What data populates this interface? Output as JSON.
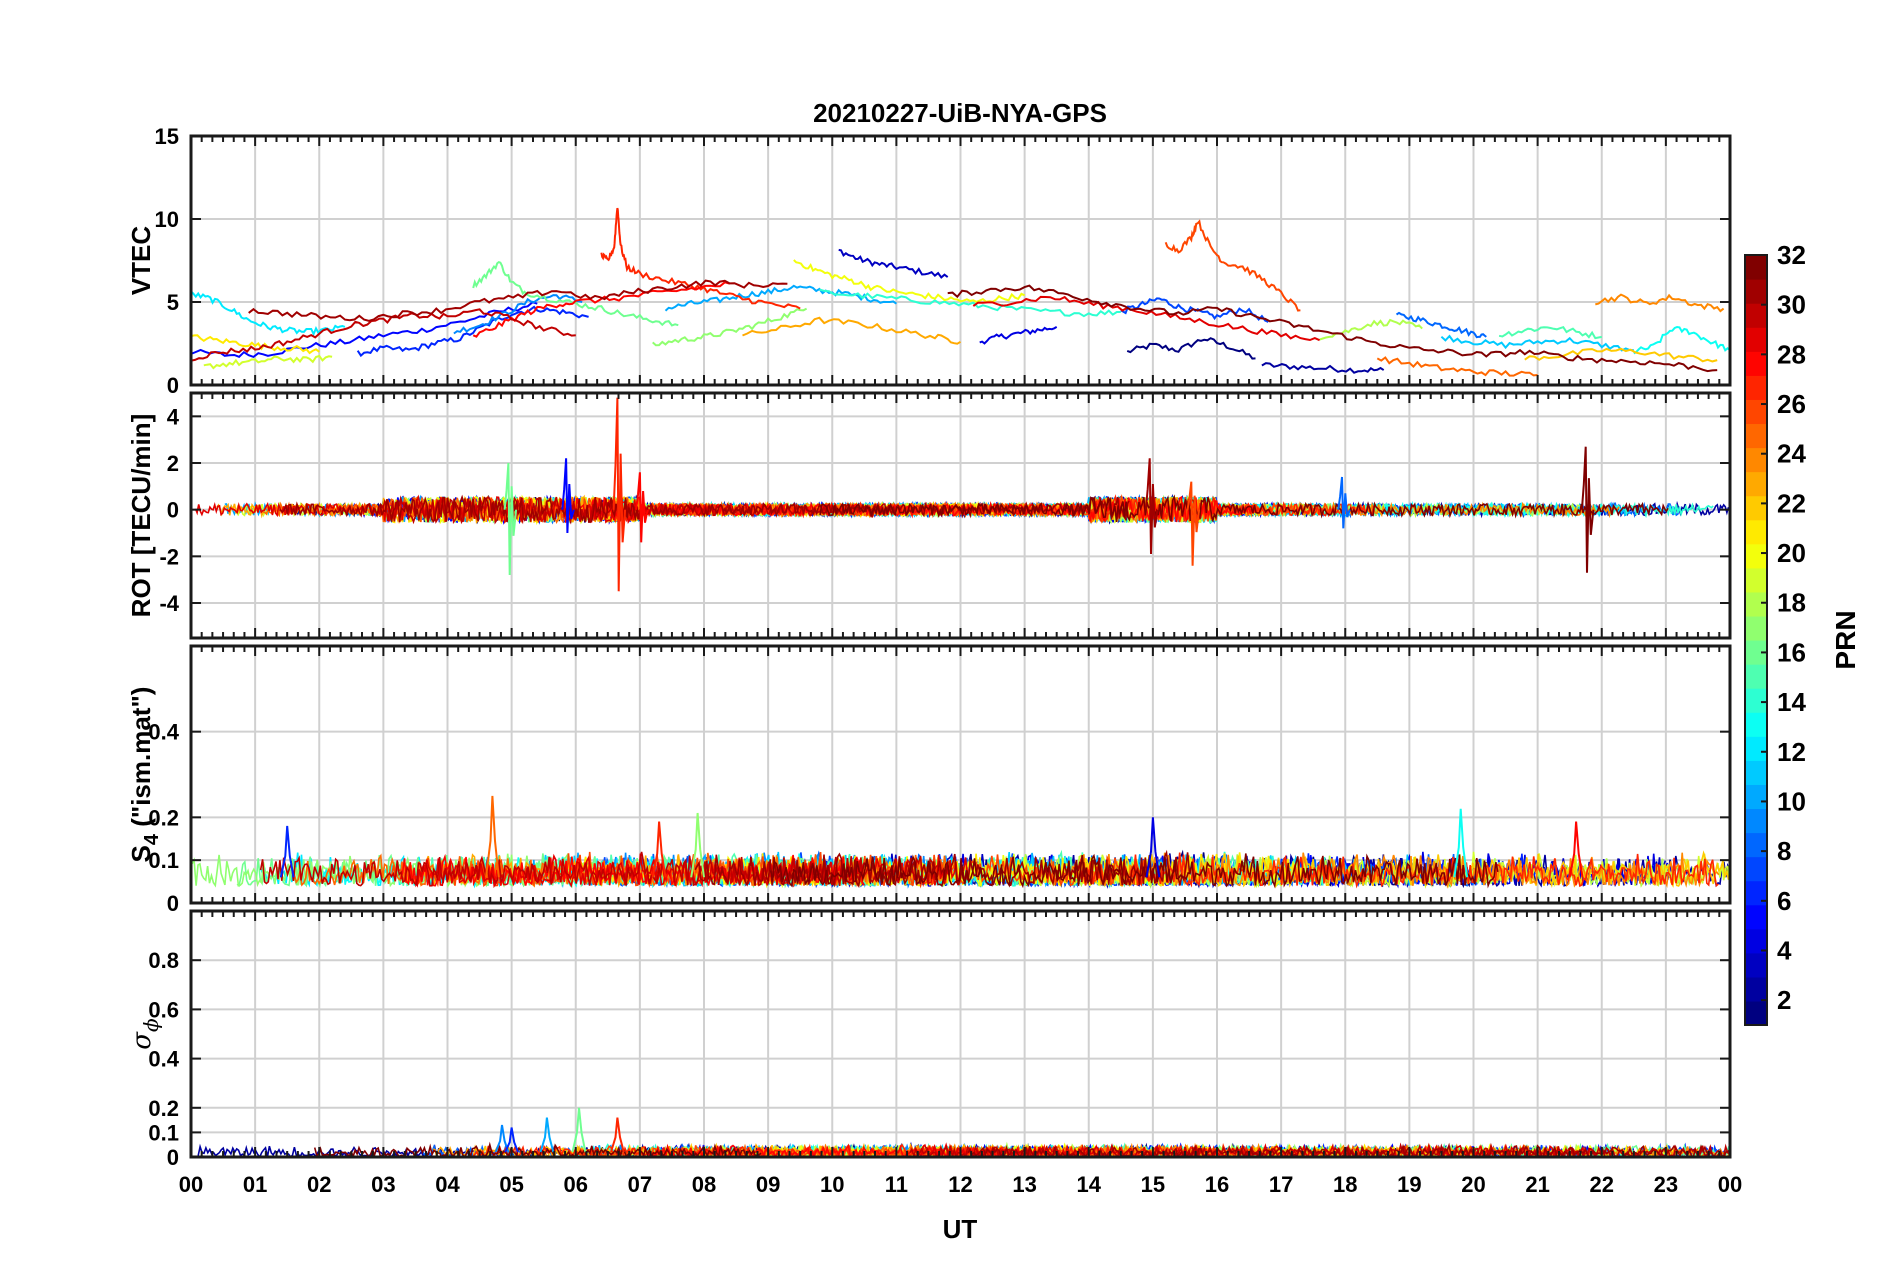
{
  "title": "20210227-UiB-NYA-GPS",
  "chart_data": {
    "type": "line",
    "title": "20210227-UiB-NYA-GPS",
    "xlabel": "UT",
    "x_unit": "hours UT",
    "xlim": [
      0,
      24
    ],
    "x_tick_labels": [
      "00",
      "01",
      "02",
      "03",
      "04",
      "05",
      "06",
      "07",
      "08",
      "09",
      "10",
      "11",
      "12",
      "13",
      "14",
      "15",
      "16",
      "17",
      "18",
      "19",
      "20",
      "21",
      "22",
      "23",
      "00"
    ],
    "series_note": "one trace per GPS satellite, colored by PRN number",
    "colorbar": {
      "label": "PRN",
      "range": [
        1,
        32
      ],
      "tick_labels": [
        "2",
        "4",
        "6",
        "8",
        "10",
        "12",
        "14",
        "16",
        "18",
        "20",
        "22",
        "24",
        "26",
        "28",
        "30",
        "32"
      ],
      "colormap": "jet"
    },
    "panels": [
      {
        "ylabel": "VTEC",
        "ylim": [
          0,
          15
        ],
        "y_tick_labels": [
          "0",
          "5",
          "10",
          "15"
        ],
        "traces": [
          {
            "prn": 1,
            "x": [
              14.6,
              15.0,
              15.4,
              15.8,
              16.2,
              16.6
            ],
            "y": [
              2.0,
              2.4,
              2.1,
              2.8,
              2.3,
              1.6
            ]
          },
          {
            "prn": 2,
            "x": [
              16.7,
              17.2,
              17.7,
              18.2,
              18.6
            ],
            "y": [
              1.2,
              1.1,
              1.0,
              0.9,
              0.9
            ]
          },
          {
            "prn": 3,
            "x": [
              10.1,
              10.4,
              10.7,
              11.0,
              11.4,
              11.8
            ],
            "y": [
              8.1,
              7.6,
              7.3,
              7.1,
              6.8,
              6.5
            ]
          },
          {
            "prn": 4,
            "x": [
              12.3,
              12.6,
              12.9,
              13.2,
              13.5
            ],
            "y": [
              2.6,
              2.9,
              3.1,
              3.3,
              3.5
            ]
          },
          {
            "prn": 5,
            "x": [
              0.0,
              0.6,
              1.2,
              1.8,
              2.4,
              3.0,
              3.6,
              4.2,
              4.8,
              5.4
            ],
            "y": [
              2.0,
              1.8,
              1.9,
              2.3,
              2.6,
              3.0,
              3.3,
              3.8,
              4.4,
              4.9
            ]
          },
          {
            "prn": 6,
            "x": [
              2.6,
              3.0,
              3.4,
              3.8,
              4.2,
              4.6,
              5.0,
              5.4,
              5.8,
              6.2
            ],
            "y": [
              1.9,
              2.2,
              2.1,
              2.5,
              2.8,
              3.6,
              4.3,
              4.6,
              4.4,
              4.1
            ]
          },
          {
            "prn": 7,
            "x": [
              14.5,
              14.8,
              15.1,
              15.4,
              15.7,
              16.0,
              16.4,
              16.8
            ],
            "y": [
              4.4,
              4.8,
              5.2,
              4.7,
              4.4,
              4.1,
              4.6,
              3.8
            ]
          },
          {
            "prn": 8,
            "x": [
              18.8,
              19.1,
              19.4,
              19.7,
              20.0,
              20.2
            ],
            "y": [
              4.2,
              4.0,
              3.7,
              3.4,
              3.1,
              2.9
            ]
          },
          {
            "prn": 9,
            "x": [
              4.1,
              4.5,
              4.9,
              5.3,
              5.7,
              6.1
            ],
            "y": [
              3.2,
              3.6,
              4.3,
              5.1,
              5.4,
              5.0
            ]
          },
          {
            "prn": 10,
            "x": [
              7.4,
              7.8,
              8.2,
              8.6,
              9.0,
              9.4,
              9.8,
              10.2,
              10.6,
              11.0
            ],
            "y": [
              4.6,
              4.9,
              5.1,
              5.4,
              5.6,
              5.9,
              5.7,
              5.5,
              5.2,
              4.9
            ]
          },
          {
            "prn": 11,
            "x": [
              19.5,
              20.0,
              20.5,
              21.0,
              21.5,
              22.0,
              22.5
            ],
            "y": [
              2.9,
              2.6,
              2.4,
              2.6,
              2.7,
              2.4,
              2.1
            ]
          },
          {
            "prn": 12,
            "x": [
              0.0,
              0.3,
              0.6,
              0.9,
              1.2,
              1.5,
              1.8,
              2.1,
              2.4
            ],
            "y": [
              5.5,
              5.2,
              4.6,
              3.9,
              3.5,
              3.3,
              3.2,
              3.3,
              3.5
            ]
          },
          {
            "prn": 13,
            "x": [
              22.5,
              22.8,
              23.1,
              23.4,
              23.7,
              24.0
            ],
            "y": [
              2.0,
              2.3,
              3.4,
              3.2,
              2.6,
              2.1
            ]
          },
          {
            "prn": 14,
            "x": [
              9.8,
              10.4,
              11.0,
              11.6,
              12.2,
              12.8,
              13.4,
              14.0,
              14.5
            ],
            "y": [
              5.6,
              5.4,
              5.2,
              5.0,
              4.8,
              4.6,
              4.4,
              4.3,
              4.4
            ]
          },
          {
            "prn": 15,
            "x": [
              20.4,
              20.8,
              21.2,
              21.6,
              22.0
            ],
            "y": [
              3.0,
              3.3,
              3.5,
              3.2,
              2.9
            ]
          },
          {
            "prn": 16,
            "x": [
              4.4,
              4.6,
              4.8,
              5.0,
              5.2,
              5.6,
              6.0,
              6.4,
              6.8,
              7.2,
              7.6
            ],
            "y": [
              6.0,
              6.6,
              7.4,
              6.2,
              5.6,
              5.2,
              4.9,
              4.6,
              4.2,
              3.9,
              3.6
            ]
          },
          {
            "prn": 17,
            "x": [
              7.2,
              7.6,
              8.0,
              8.4,
              8.8,
              9.2,
              9.6
            ],
            "y": [
              2.4,
              2.7,
              2.9,
              3.2,
              3.6,
              4.1,
              4.6
            ]
          },
          {
            "prn": 18,
            "x": [
              17.6,
              18.0,
              18.4,
              18.8,
              19.2
            ],
            "y": [
              2.9,
              3.2,
              3.7,
              3.8,
              3.4
            ]
          },
          {
            "prn": 19,
            "x": [
              0.2,
              0.6,
              1.0,
              1.4,
              1.8,
              2.2
            ],
            "y": [
              1.1,
              1.3,
              1.4,
              1.6,
              1.5,
              1.7
            ]
          },
          {
            "prn": 20,
            "x": [
              9.4,
              9.7,
              10.0,
              10.3,
              10.6,
              11.0,
              11.4,
              11.8,
              12.2,
              12.6,
              13.0
            ],
            "y": [
              7.5,
              7.0,
              6.6,
              6.3,
              5.9,
              5.6,
              5.4,
              5.2,
              5.0,
              5.2,
              5.4
            ]
          },
          {
            "prn": 21,
            "x": [
              0.0,
              0.4,
              0.8,
              1.2,
              1.6,
              2.0
            ],
            "y": [
              2.9,
              2.7,
              2.5,
              2.3,
              2.2,
              2.0
            ]
          },
          {
            "prn": 22,
            "x": [
              20.8,
              21.4,
              22.0,
              22.6,
              23.2,
              23.8
            ],
            "y": [
              1.6,
              1.8,
              2.1,
              2.0,
              1.7,
              1.5
            ]
          },
          {
            "prn": 23,
            "x": [
              8.6,
              9.2,
              9.8,
              10.4,
              11.0,
              11.6,
              12.0
            ],
            "y": [
              3.0,
              3.4,
              3.9,
              3.7,
              3.3,
              2.9,
              2.6
            ]
          },
          {
            "prn": 24,
            "x": [
              21.9,
              22.3,
              22.7,
              23.1,
              23.5,
              23.9
            ],
            "y": [
              5.0,
              5.3,
              4.9,
              5.3,
              4.8,
              4.6
            ]
          },
          {
            "prn": 25,
            "x": [
              18.5,
              19.0,
              19.5,
              20.0,
              20.5,
              21.0
            ],
            "y": [
              1.6,
              1.3,
              1.0,
              0.8,
              0.7,
              0.6
            ]
          },
          {
            "prn": 26,
            "x": [
              15.2,
              15.4,
              15.6,
              15.7,
              15.9,
              16.1,
              16.4,
              16.7,
              17.0,
              17.3
            ],
            "y": [
              8.5,
              8.1,
              8.9,
              9.9,
              8.3,
              7.4,
              7.1,
              6.4,
              5.5,
              4.5
            ]
          },
          {
            "prn": 27,
            "x": [
              6.4,
              6.5,
              6.6,
              6.65,
              6.7,
              6.8,
              7.0,
              7.4,
              7.8,
              8.2,
              8.6,
              9.0,
              9.5
            ],
            "y": [
              7.8,
              7.5,
              8.3,
              10.8,
              8.4,
              7.1,
              6.7,
              6.3,
              6.0,
              5.6,
              5.2,
              4.9,
              4.6
            ]
          },
          {
            "prn": 28,
            "x": [
              4.4,
              4.8,
              5.2,
              5.6,
              6.0,
              6.6,
              7.2,
              7.8,
              8.4
            ],
            "y": [
              2.9,
              3.6,
              4.3,
              4.8,
              5.0,
              5.2,
              5.5,
              5.8,
              6.1
            ]
          },
          {
            "prn": 29,
            "x": [
              12.2,
              12.8,
              13.4,
              14.0,
              14.6,
              15.2,
              15.8,
              16.4,
              17.0,
              17.6
            ],
            "y": [
              4.8,
              5.0,
              5.3,
              4.9,
              4.6,
              4.2,
              3.8,
              3.4,
              3.0,
              2.7
            ]
          },
          {
            "prn": 30,
            "x": [
              0.0,
              0.5,
              1.0,
              1.5,
              2.0,
              2.5,
              3.0,
              3.5,
              4.0,
              4.5,
              5.0,
              5.5,
              6.0
            ],
            "y": [
              1.6,
              2.0,
              2.2,
              2.6,
              3.1,
              3.6,
              3.9,
              4.2,
              4.1,
              4.5,
              4.0,
              3.4,
              3.0
            ]
          },
          {
            "prn": 31,
            "x": [
              0.9,
              1.5,
              2.1,
              2.7,
              3.3,
              3.9,
              4.5,
              5.1,
              5.7,
              6.3,
              6.9,
              7.5,
              8.1,
              8.7,
              9.3
            ],
            "y": [
              4.5,
              4.3,
              4.1,
              4.0,
              4.3,
              4.5,
              5.0,
              5.3,
              5.7,
              5.2,
              5.6,
              5.9,
              6.2,
              6.0,
              6.1
            ]
          },
          {
            "prn": 32,
            "x": [
              11.8,
              12.4,
              13.0,
              13.6,
              14.2,
              14.8,
              15.4,
              16.0,
              16.6,
              17.2,
              17.8,
              18.4,
              19.0,
              19.6,
              20.2,
              20.8,
              21.4,
              22.0,
              22.6,
              23.2,
              23.8
            ],
            "y": [
              5.4,
              5.7,
              5.9,
              5.5,
              5.0,
              4.6,
              4.3,
              4.6,
              4.1,
              3.6,
              3.1,
              2.6,
              2.2,
              2.0,
              1.8,
              2.0,
              1.7,
              1.5,
              1.4,
              1.2,
              0.9
            ]
          }
        ]
      },
      {
        "ylabel": "ROT [TECU/min]",
        "ylim": [
          -5.5,
          5.0
        ],
        "y_tick_labels": [
          "-4",
          "-2",
          "0",
          "2",
          "4"
        ],
        "y_ticks": [
          -4,
          -2,
          0,
          2,
          4
        ],
        "trace_note": "dense noisy traces around 0 with spikes",
        "spikes": [
          {
            "x": 4.95,
            "y_max": 2.0,
            "y_min": -2.8,
            "prn": 16
          },
          {
            "x": 5.85,
            "y_max": 2.2,
            "y_min": -1.0,
            "prn": 5
          },
          {
            "x": 6.65,
            "y_max": 4.8,
            "y_min": -3.5,
            "prn": 27
          },
          {
            "x": 7.0,
            "y_max": 1.6,
            "y_min": -1.4,
            "prn": 28
          },
          {
            "x": 14.95,
            "y_max": 2.2,
            "y_min": -1.9,
            "prn": 31
          },
          {
            "x": 15.6,
            "y_max": 1.2,
            "y_min": -2.4,
            "prn": 26
          },
          {
            "x": 21.75,
            "y_max": 2.7,
            "y_min": -2.7,
            "prn": 32
          },
          {
            "x": 17.95,
            "y_max": 1.4,
            "y_min": -0.8,
            "prn": 8
          }
        ]
      },
      {
        "ylabel": "S",
        "ylabel_subscript": "4",
        "ylabel_suffix": " (\"ism.mat\")",
        "ylim": [
          0,
          0.6
        ],
        "y_tick_labels": [
          "0",
          "0.1",
          "0.2",
          "0.4"
        ],
        "y_ticks": [
          0,
          0.1,
          0.2,
          0.4
        ],
        "baseline_range": [
          0.04,
          0.12
        ],
        "peaks": [
          {
            "x": 1.5,
            "y": 0.18,
            "prn": 6
          },
          {
            "x": 4.7,
            "y": 0.25,
            "prn": 25
          },
          {
            "x": 7.3,
            "y": 0.19,
            "prn": 27
          },
          {
            "x": 7.9,
            "y": 0.21,
            "prn": 17
          },
          {
            "x": 15.0,
            "y": 0.2,
            "prn": 4
          },
          {
            "x": 19.8,
            "y": 0.22,
            "prn": 13
          },
          {
            "x": 21.6,
            "y": 0.19,
            "prn": 28
          }
        ]
      },
      {
        "ylabel": "σ",
        "ylabel_subscript": "ϕ",
        "ylim": [
          0,
          1.0
        ],
        "y_tick_labels": [
          "0",
          "0.1",
          "0.2",
          "0.4",
          "0.6",
          "0.8"
        ],
        "y_ticks": [
          0,
          0.1,
          0.2,
          0.4,
          0.6,
          0.8
        ],
        "baseline_range": [
          0.0,
          0.05
        ],
        "peaks": [
          {
            "x": 4.85,
            "y": 0.13,
            "prn": 9
          },
          {
            "x": 5.0,
            "y": 0.12,
            "prn": 6
          },
          {
            "x": 5.55,
            "y": 0.16,
            "prn": 10
          },
          {
            "x": 6.05,
            "y": 0.2,
            "prn": 16
          },
          {
            "x": 6.65,
            "y": 0.16,
            "prn": 27
          }
        ]
      }
    ]
  }
}
